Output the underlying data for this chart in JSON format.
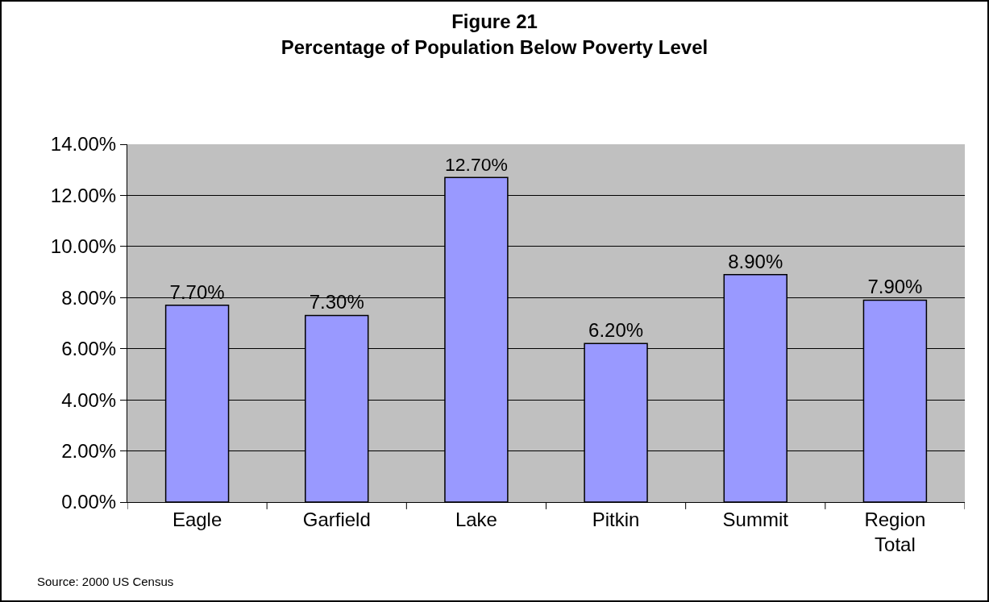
{
  "chart_data": {
    "type": "bar",
    "title": "Figure 21",
    "subtitle": "Percentage of Population Below Poverty Level",
    "categories": [
      "Eagle",
      "Garfield",
      "Lake",
      "Pitkin",
      "Summit",
      "Region Total"
    ],
    "values": [
      7.7,
      7.3,
      12.7,
      6.2,
      8.9,
      7.9
    ],
    "value_labels": [
      "7.70%",
      "7.30%",
      "12.70%",
      "6.20%",
      "8.90%",
      "7.90%"
    ],
    "color": "#9999ff",
    "ylim": [
      0,
      14
    ],
    "yticks": [
      {
        "value": 0,
        "label": "0.00%"
      },
      {
        "value": 2,
        "label": "2.00%"
      },
      {
        "value": 4,
        "label": "4.00%"
      },
      {
        "value": 6,
        "label": "6.00%"
      },
      {
        "value": 8,
        "label": "8.00%"
      },
      {
        "value": 10,
        "label": "10.00%"
      },
      {
        "value": 12,
        "label": "12.00%"
      },
      {
        "value": 14,
        "label": "14.00%"
      }
    ],
    "grid": "y",
    "annotations": [
      "Source: 2000 US Census"
    ]
  }
}
